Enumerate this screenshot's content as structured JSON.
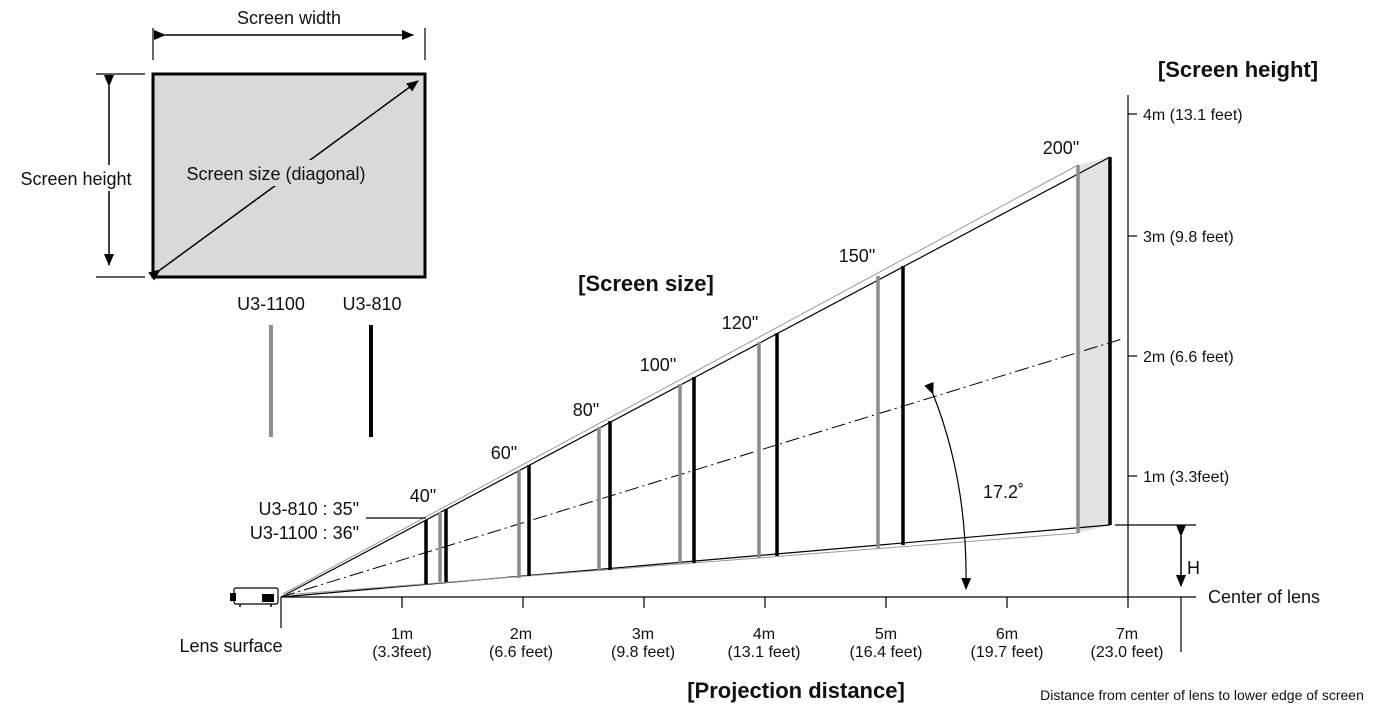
{
  "screen_box": {
    "width_label": "Screen width",
    "height_label": "Screen height",
    "diagonal_label": "Screen size (diagonal)"
  },
  "legend": {
    "u3_1100": "U3-1100",
    "u3_810": "U3-810",
    "colors": {
      "u3_1100": "#8c8c8c",
      "u3_810": "#000000"
    }
  },
  "titles": {
    "screen_size": "[Screen size]",
    "screen_height": "[Screen height]",
    "projection_distance": "[Projection distance]"
  },
  "screen_sizes": [
    "40\"",
    "60\"",
    "80\"",
    "100\"",
    "120\"",
    "150\"",
    "200\""
  ],
  "min_size_labels": {
    "u3_810": "U3-810 : 35\"",
    "u3_1100": "U3-1100 : 36\""
  },
  "height_ticks": [
    "1m (3.3feet)",
    "2m (6.6 feet)",
    "3m (9.8 feet)",
    "4m (13.1 feet)"
  ],
  "distance_ticks": [
    {
      "m": "1m",
      "ft": "(3.3feet)"
    },
    {
      "m": "2m",
      "ft": "(6.6 feet)"
    },
    {
      "m": "3m",
      "ft": "(9.8 feet)"
    },
    {
      "m": "4m",
      "ft": "(13.1 feet)"
    },
    {
      "m": "5m",
      "ft": "(16.4 feet)"
    },
    {
      "m": "6m",
      "ft": "(19.7 feet)"
    },
    {
      "m": "7m",
      "ft": "(23.0 feet)"
    }
  ],
  "angle_label": "17.2˚",
  "h_label": "H",
  "center_of_lens": "Center of lens",
  "lens_surface": "Lens surface",
  "distance_note": "Distance from center of lens to lower edge of screen"
}
